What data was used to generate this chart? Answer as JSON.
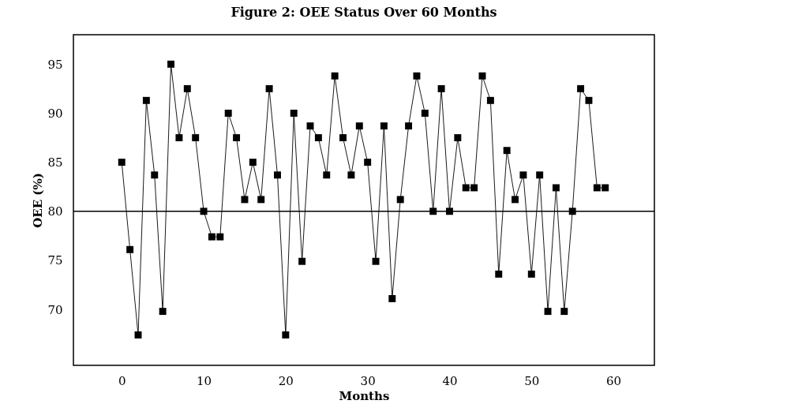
{
  "chart_data": {
    "type": "line",
    "title": "Figure 2: OEE Status Over 60 Months",
    "xlabel": "Months",
    "ylabel": "OEE  (%)",
    "x": [
      0,
      1,
      2,
      3,
      4,
      5,
      6,
      7,
      8,
      9,
      10,
      11,
      12,
      13,
      14,
      15,
      16,
      17,
      18,
      19,
      20,
      21,
      22,
      23,
      24,
      25,
      26,
      27,
      28,
      29,
      30,
      31,
      32,
      33,
      34,
      35,
      36,
      37,
      38,
      39,
      40,
      41,
      42,
      43,
      44,
      45,
      46,
      47,
      48,
      49,
      50,
      51,
      52,
      53,
      54,
      55,
      56,
      57,
      58,
      59
    ],
    "series": [
      {
        "color": "#000000",
        "values": [
          85.0,
          76.1,
          67.4,
          91.3,
          83.7,
          69.8,
          95.0,
          87.5,
          92.5,
          87.5,
          80.0,
          77.4,
          77.4,
          90.0,
          87.5,
          81.2,
          85.0,
          81.2,
          92.5,
          83.7,
          67.4,
          90.0,
          74.9,
          88.7,
          87.5,
          83.7,
          93.8,
          87.5,
          83.7,
          88.7,
          85.0,
          74.9,
          88.7,
          71.1,
          81.2,
          88.7,
          93.8,
          90.0,
          80.0,
          92.5,
          80.0,
          87.5,
          82.4,
          82.4,
          93.8,
          91.3,
          73.6,
          86.2,
          81.2,
          83.7,
          73.6,
          83.7,
          69.8,
          82.4,
          69.8,
          80.0,
          92.5,
          91.3,
          82.4,
          82.4
        ]
      }
    ],
    "xlim": [
      -5.9,
      65
    ],
    "ylim": [
      64.3,
      98
    ],
    "xticks": [
      0,
      10,
      20,
      30,
      40,
      50,
      60
    ],
    "yticks": [
      70,
      75,
      80,
      85,
      90,
      95
    ],
    "ref_lines": [
      {
        "axis": "y",
        "value": 80,
        "color": "#000000"
      }
    ],
    "grid": false,
    "marker": "square",
    "line_style": "solid"
  }
}
